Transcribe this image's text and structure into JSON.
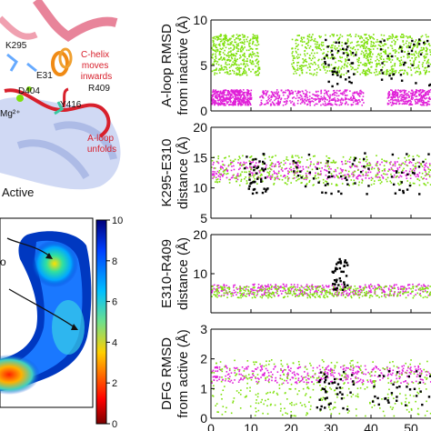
{
  "structure": {
    "labels": {
      "k295": "K295",
      "e31": "E31",
      "r409": "R409",
      "d404": "D404",
      "y416": "Y416",
      "mg": "Mg²⁺",
      "chelix": [
        "C-helix",
        "moves",
        "inwards"
      ],
      "aloop": [
        "A-loop",
        "unfolds"
      ],
      "state": "Active"
    }
  },
  "colors": {
    "inactive_series": "#e020d8",
    "active_series": "#7ee00a",
    "transition_series": "#000000",
    "helix_pink": "#e8849a",
    "helix_blue": "#b8c4ec",
    "loop_red": "#d8202c",
    "chelix_orange": "#f08a14"
  },
  "chart_data": [
    {
      "type": "scatter",
      "ylabel_lines": [
        "A-loop RMSD",
        "from inactive (Å)"
      ],
      "yticks": [
        "10",
        "5",
        "0"
      ],
      "ylim": [
        0,
        10
      ],
      "series": [
        {
          "band": [
            0.7,
            2.4
          ],
          "color_key": "inactive_series",
          "segments": [
            [
              0,
              10
            ],
            [
              12,
              38
            ],
            [
              44,
              60
            ]
          ]
        },
        {
          "band": [
            4.0,
            8.5
          ],
          "color_key": "active_series",
          "segments": [
            [
              0,
              12
            ],
            [
              20,
              40
            ],
            [
              38,
              56
            ]
          ]
        },
        {
          "band": [
            2.8,
            8.0
          ],
          "color_key": "transition_series",
          "segments": [
            [
              28,
              36
            ],
            [
              42,
              58
            ]
          ]
        }
      ]
    },
    {
      "type": "scatter",
      "ylabel_lines": [
        "K295-E310",
        "distance (Å)"
      ],
      "yticks": [
        "20",
        "15",
        "10",
        "5"
      ],
      "ylim": [
        5,
        20
      ],
      "series": [
        {
          "band": [
            11.5,
            14.5
          ],
          "color_key": "inactive_series",
          "segments": [
            [
              0,
              60
            ]
          ]
        },
        {
          "band": [
            10.5,
            15.5
          ],
          "color_key": "active_series",
          "segments": [
            [
              0,
              60
            ]
          ]
        },
        {
          "band": [
            9.0,
            16.0
          ],
          "color_key": "transition_series",
          "segments": [
            [
              8,
              14
            ],
            [
              20,
              40
            ],
            [
              44,
              58
            ]
          ]
        }
      ]
    },
    {
      "type": "scatter",
      "ylabel_lines": [
        "E310-R409",
        "distance (Å)"
      ],
      "yticks": [
        "20",
        "10"
      ],
      "ylim": [
        0,
        20
      ],
      "series": [
        {
          "band": [
            4.5,
            7.5
          ],
          "color_key": "inactive_series",
          "segments": [
            [
              0,
              60
            ]
          ]
        },
        {
          "band": [
            4.0,
            7.0
          ],
          "color_key": "active_series",
          "segments": [
            [
              0,
              60
            ]
          ]
        },
        {
          "band": [
            6.0,
            14.0
          ],
          "color_key": "transition_series",
          "segments": [
            [
              30,
              34
            ]
          ]
        }
      ]
    },
    {
      "type": "scatter",
      "ylabel_lines": [
        "DFG RMSD",
        "from active (Å)"
      ],
      "yticks": [
        "3",
        "2",
        "1",
        "0"
      ],
      "ylim": [
        0,
        3
      ],
      "series": [
        {
          "band": [
            1.2,
            1.8
          ],
          "color_key": "inactive_series",
          "segments": [
            [
              0,
              60
            ]
          ]
        },
        {
          "band": [
            0.1,
            2.0
          ],
          "color_key": "active_series",
          "segments": [
            [
              0,
              60
            ]
          ]
        },
        {
          "band": [
            0.3,
            1.7
          ],
          "color_key": "transition_series",
          "segments": [
            [
              26,
              36
            ],
            [
              40,
              58
            ]
          ]
        }
      ]
    }
  ],
  "xticks": [
    "0",
    "10",
    "20",
    "30",
    "40",
    "50"
  ],
  "xlim": [
    0,
    55
  ],
  "heatmap": {
    "colorbar_ticks": [
      "10",
      "8",
      "6",
      "4",
      "2",
      "0"
    ],
    "colorbar_range": [
      0,
      10
    ],
    "markers": [
      "o"
    ]
  }
}
